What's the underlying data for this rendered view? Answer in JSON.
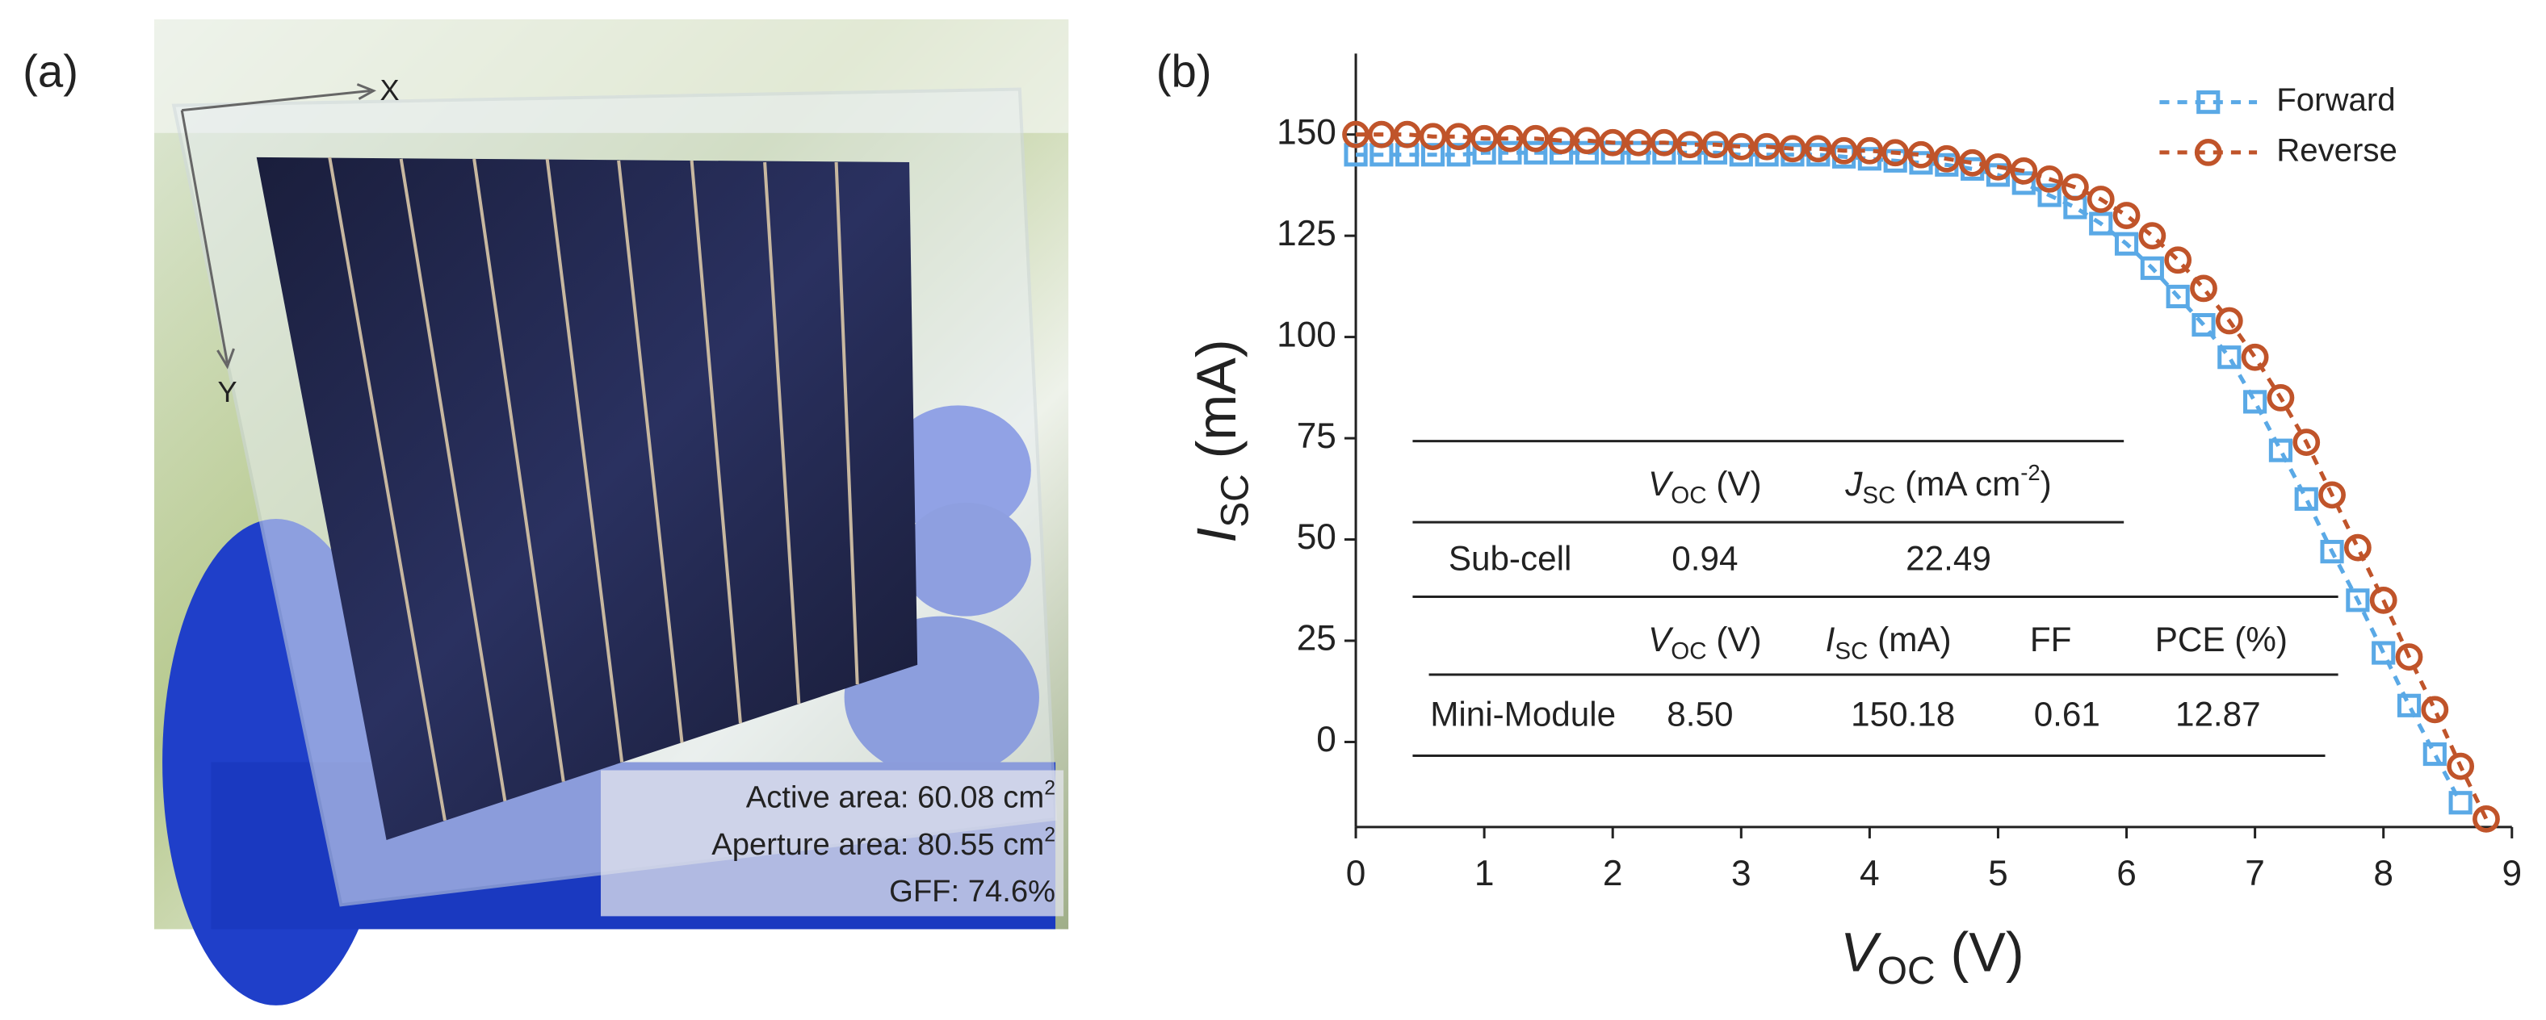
{
  "panel_a": {
    "label": "(a)",
    "axis_x": "X",
    "axis_y": "Y",
    "info": [
      [
        {
          "text": "Active area: 60.08 cm"
        },
        {
          "text": "2",
          "style": "sup"
        }
      ],
      [
        {
          "text": "Aperture area: 80.55 cm"
        },
        {
          "text": "2",
          "style": "sup"
        }
      ],
      [
        {
          "text": "GFF: 74.6%"
        }
      ]
    ]
  },
  "chart_data": {
    "type": "line",
    "panel_label": "(b)",
    "x_label": [
      {
        "text": "V",
        "style": "italic"
      },
      {
        "text": "OC",
        "style": "sub"
      },
      {
        "text": " (V)"
      }
    ],
    "y_label": [
      {
        "text": "I",
        "style": "italic"
      },
      {
        "text": "SC",
        "style": "sub"
      },
      {
        "text": " (mA)"
      }
    ],
    "x": [
      0,
      0.2,
      0.4,
      0.6,
      0.8,
      1,
      1.2,
      1.4,
      1.6,
      1.8,
      2,
      2.2,
      2.4,
      2.6,
      2.8,
      3,
      3.2,
      3.4,
      3.6,
      3.8,
      4,
      4.2,
      4.4,
      4.6,
      4.8,
      5,
      5.2,
      5.4,
      5.6,
      5.8,
      6,
      6.2,
      6.4,
      6.6,
      6.8,
      7,
      7.2,
      7.4,
      7.6,
      7.8,
      8,
      8.2,
      8.4,
      8.6,
      8.8
    ],
    "series": [
      {
        "name": "Forward",
        "color": "#5aa9e6",
        "marker": "square",
        "values": [
          145,
          145,
          145,
          145,
          145,
          145.5,
          145.5,
          145.5,
          145.5,
          145.5,
          145.5,
          145.5,
          145.5,
          145.5,
          145.5,
          145,
          145,
          145,
          145,
          144.5,
          144,
          143.5,
          143,
          142.5,
          141.5,
          140,
          138,
          135,
          132,
          128,
          123,
          117,
          110,
          103,
          95,
          84,
          72,
          60,
          47,
          35,
          22,
          9,
          -3,
          -15,
          null
        ]
      },
      {
        "name": "Reverse",
        "color": "#c0542a",
        "marker": "circle",
        "values": [
          150,
          150,
          150,
          149.5,
          149.5,
          149,
          149,
          149,
          148.5,
          148.5,
          148,
          148,
          148,
          147.5,
          147.5,
          147,
          147,
          146.5,
          146.5,
          146,
          146,
          145.5,
          145,
          144,
          143,
          142,
          141,
          139,
          137,
          134,
          130,
          125,
          119,
          112,
          104,
          95,
          85,
          74,
          61,
          48,
          35,
          21,
          8,
          -6,
          -19
        ]
      }
    ],
    "xlim": [
      0,
      9
    ],
    "xticks": [
      0,
      1,
      2,
      3,
      4,
      5,
      6,
      7,
      8,
      9
    ],
    "ylim": [
      -21,
      170
    ],
    "yticks": [
      0,
      25,
      50,
      75,
      100,
      125,
      150
    ],
    "legend": "upper right",
    "table": {
      "header_1": [
        [
          {
            "text": "V",
            "style": "italic"
          },
          {
            "text": "OC",
            "style": "sub"
          },
          {
            "text": " (V)"
          }
        ],
        [
          {
            "text": "J",
            "style": "italic"
          },
          {
            "text": "SC",
            "style": "sub"
          },
          {
            "text": " (mA cm"
          },
          {
            "text": "-2",
            "style": "sup"
          },
          {
            "text": ")"
          }
        ]
      ],
      "row_1": [
        "Sub-cell",
        "0.94",
        "22.49"
      ],
      "header_2": [
        [
          {
            "text": "V",
            "style": "italic"
          },
          {
            "text": "OC",
            "style": "sub"
          },
          {
            "text": " (V)"
          }
        ],
        [
          {
            "text": "I",
            "style": "italic"
          },
          {
            "text": "SC",
            "style": "sub"
          },
          {
            "text": " (mA)"
          }
        ],
        [
          {
            "text": "FF"
          }
        ],
        [
          {
            "text": "PCE (%)"
          }
        ]
      ],
      "row_2": [
        "Mini-Module",
        "8.50",
        "150.18",
        "0.61",
        "12.87"
      ]
    }
  }
}
